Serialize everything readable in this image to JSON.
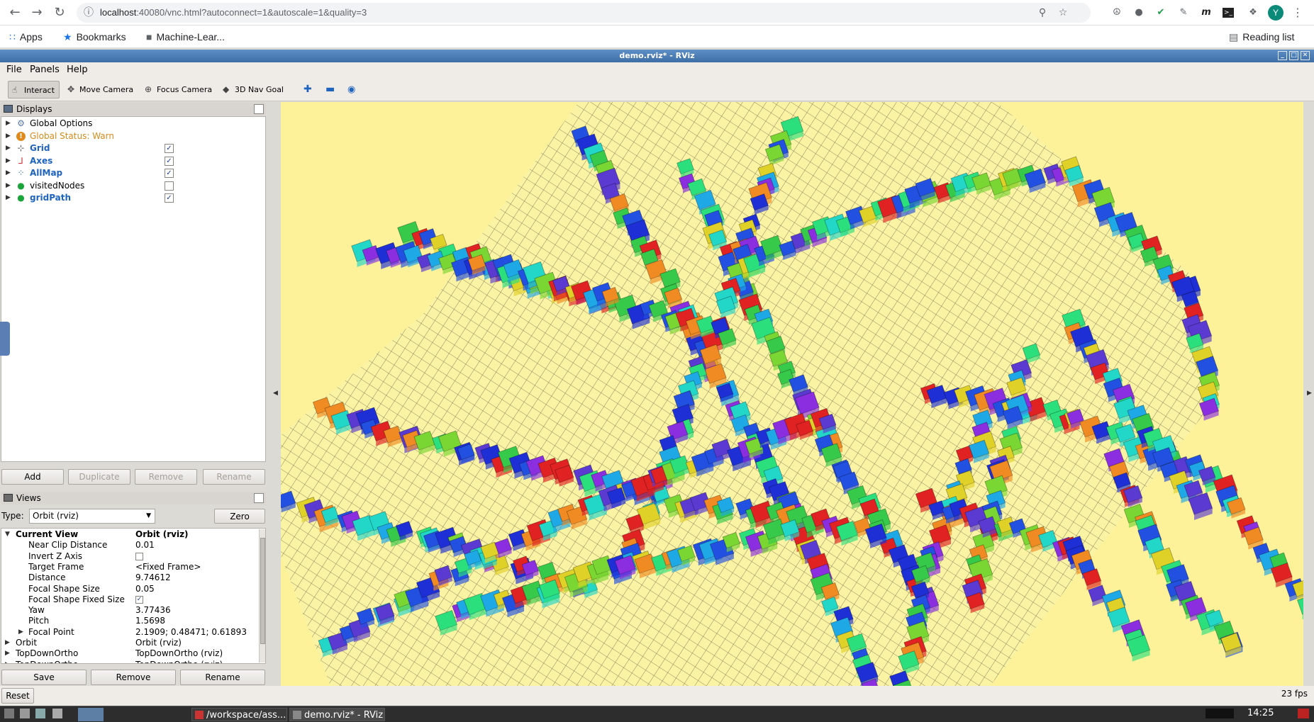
{
  "browser": {
    "url_host": "localhost",
    "url_rest": ":40080/vnc.html?autoconnect=1&autoscale=1&quality=3",
    "avatar_letter": "Y",
    "bookmarks": {
      "apps": "Apps",
      "bookmarks": "Bookmarks",
      "folder": "Machine-Lear...",
      "reading_list": "Reading list"
    }
  },
  "rviz": {
    "window_title": "demo.rviz* - RViz",
    "menu": {
      "file": "File",
      "panels": "Panels",
      "help": "Help"
    },
    "tools": {
      "interact": "Interact",
      "move_camera": "Move Camera",
      "focus_camera": "Focus Camera",
      "nav_goal": "3D Nav Goal"
    },
    "displays": {
      "title": "Displays",
      "items": [
        {
          "label": "Global Options",
          "icon": "gear-icon",
          "style": "normal",
          "checkbox": null
        },
        {
          "label": "Global Status: Warn",
          "icon": "warning-icon",
          "style": "warn",
          "checkbox": null
        },
        {
          "label": "Grid",
          "icon": "grid-icon",
          "style": "blue",
          "checkbox": true
        },
        {
          "label": "Axes",
          "icon": "axes-icon",
          "style": "blue",
          "checkbox": true
        },
        {
          "label": "AllMap",
          "icon": "map-icon",
          "style": "blue",
          "checkbox": true
        },
        {
          "label": "visitedNodes",
          "icon": "marker-icon",
          "style": "normal",
          "checkbox": false
        },
        {
          "label": "gridPath",
          "icon": "marker-icon",
          "style": "blue",
          "checkbox": true
        }
      ],
      "buttons": {
        "add": "Add",
        "duplicate": "Duplicate",
        "remove": "Remove",
        "rename": "Rename"
      }
    },
    "views": {
      "title": "Views",
      "type_label": "Type:",
      "type_value": "Orbit (rviz)",
      "zero": "Zero",
      "properties": [
        {
          "key": "Current View",
          "value": "Orbit (rviz)",
          "level": 0,
          "bold": true,
          "expanded": true
        },
        {
          "key": "Near Clip Distance",
          "value": "0.01",
          "level": 1
        },
        {
          "key": "Invert Z Axis",
          "value": "",
          "level": 1,
          "checkbox": false
        },
        {
          "key": "Target Frame",
          "value": "<Fixed Frame>",
          "level": 1
        },
        {
          "key": "Distance",
          "value": "9.74612",
          "level": 1
        },
        {
          "key": "Focal Shape Size",
          "value": "0.05",
          "level": 1
        },
        {
          "key": "Focal Shape Fixed Size",
          "value": "",
          "level": 1,
          "checkbox": true
        },
        {
          "key": "Yaw",
          "value": "3.77436",
          "level": 1
        },
        {
          "key": "Pitch",
          "value": "1.5698",
          "level": 1
        },
        {
          "key": "Focal Point",
          "value": "2.1909; 0.48471; 0.61893",
          "level": 1,
          "collapsed": true
        },
        {
          "key": "Orbit",
          "value": "Orbit (rviz)",
          "level": 0,
          "collapsed": true
        },
        {
          "key": "TopDownOrtho",
          "value": "TopDownOrtho (rviz)",
          "level": 0,
          "collapsed": true
        },
        {
          "key": "TopDownOrtho",
          "value": "TopDownOrtho (rviz)",
          "level": 0,
          "collapsed": true
        }
      ],
      "buttons": {
        "save": "Save",
        "remove": "Remove",
        "rename": "Rename"
      }
    },
    "reset": "Reset",
    "fps": "23 fps"
  },
  "taskbar": {
    "tasks": [
      "/workspace/ass...",
      "demo.rviz* - RViz"
    ],
    "clock": "14:25"
  },
  "colors": {
    "viewport_bg": "#fdf29a",
    "blue_label": "#1d63c0",
    "warn_label": "#d98a1a"
  }
}
